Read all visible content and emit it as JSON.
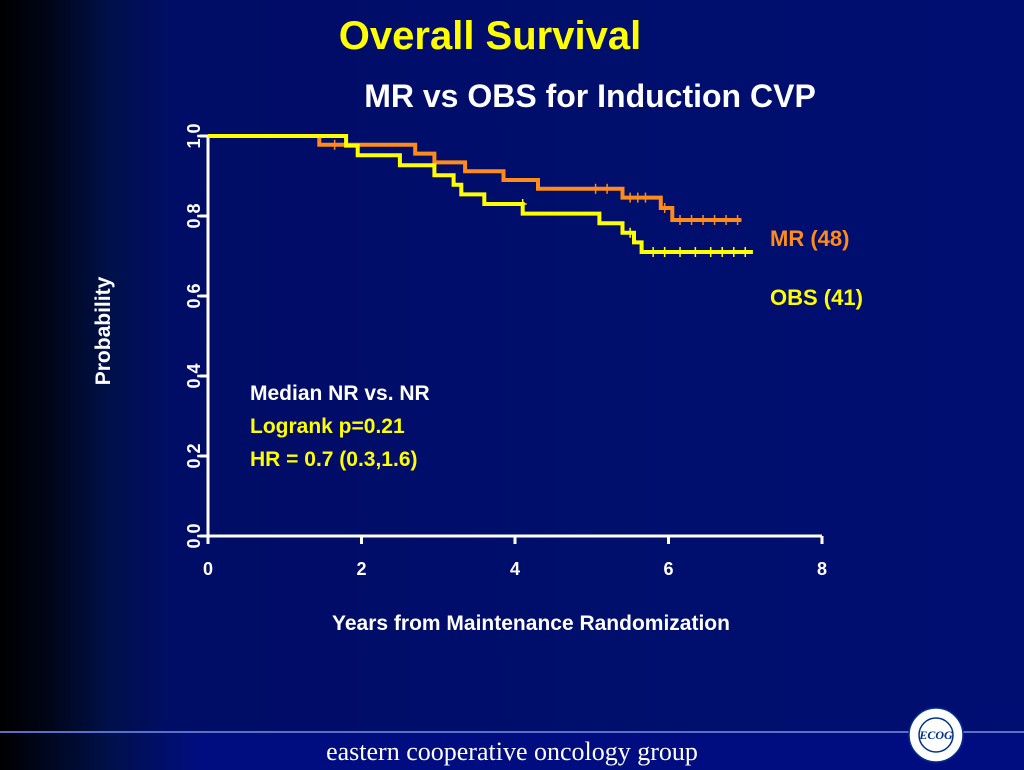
{
  "header": {
    "title": "Overall Survival",
    "subtitle": "MR vs OBS for Induction CVP"
  },
  "annotations": {
    "median": "Median NR vs. NR",
    "logrank": "Logrank p=0.21",
    "hr": "HR = 0.7 (0.3,1.6)"
  },
  "footer": {
    "text": "eastern cooperative oncology group",
    "logo_text": "ECOG",
    "logo_ring": "EASTERN COOPERATIVE ONCOLOGY GROUP"
  },
  "colors": {
    "mr": "#ff8c1a",
    "obs": "#ffff00",
    "axis": "#ffffff",
    "note_highlight": "#ffff00"
  },
  "chart_data": {
    "type": "line",
    "title": "Overall Survival",
    "subtitle": "MR vs OBS for Induction CVP",
    "xlabel": "Years from Maintenance Randomization",
    "ylabel": "Probability",
    "xlim": [
      0,
      8
    ],
    "ylim": [
      0,
      1.0
    ],
    "x_ticks": [
      "0",
      "2",
      "4",
      "6",
      "8"
    ],
    "y_ticks": [
      "0.0",
      "0.2",
      "0.4",
      "0.6",
      "0.8",
      "1.0"
    ],
    "grid": false,
    "series": [
      {
        "name": "MR (48)",
        "steps": [
          [
            0,
            1.0
          ],
          [
            1.45,
            1.0
          ],
          [
            1.45,
            0.978
          ],
          [
            2.7,
            0.978
          ],
          [
            2.7,
            0.956
          ],
          [
            2.95,
            0.956
          ],
          [
            2.95,
            0.934
          ],
          [
            3.35,
            0.934
          ],
          [
            3.35,
            0.912
          ],
          [
            3.85,
            0.912
          ],
          [
            3.85,
            0.89
          ],
          [
            4.3,
            0.89
          ],
          [
            4.3,
            0.868
          ],
          [
            5.4,
            0.868
          ],
          [
            5.4,
            0.846
          ],
          [
            5.9,
            0.846
          ],
          [
            5.9,
            0.82
          ],
          [
            6.05,
            0.82
          ],
          [
            6.05,
            0.79
          ],
          [
            6.95,
            0.79
          ]
        ],
        "censored": [
          [
            1.65,
            0.978
          ],
          [
            5.05,
            0.868
          ],
          [
            5.2,
            0.868
          ],
          [
            5.5,
            0.846
          ],
          [
            5.6,
            0.846
          ],
          [
            5.7,
            0.846
          ],
          [
            5.95,
            0.82
          ],
          [
            6.15,
            0.79
          ],
          [
            6.3,
            0.79
          ],
          [
            6.45,
            0.79
          ],
          [
            6.6,
            0.79
          ],
          [
            6.75,
            0.79
          ],
          [
            6.9,
            0.79
          ]
        ]
      },
      {
        "name": "OBS (41)",
        "steps": [
          [
            0,
            1.0
          ],
          [
            1.8,
            1.0
          ],
          [
            1.8,
            0.976
          ],
          [
            1.95,
            0.976
          ],
          [
            1.95,
            0.952
          ],
          [
            2.5,
            0.952
          ],
          [
            2.5,
            0.927
          ],
          [
            2.95,
            0.927
          ],
          [
            2.95,
            0.902
          ],
          [
            3.2,
            0.902
          ],
          [
            3.2,
            0.878
          ],
          [
            3.3,
            0.878
          ],
          [
            3.3,
            0.854
          ],
          [
            3.6,
            0.854
          ],
          [
            3.6,
            0.83
          ],
          [
            4.1,
            0.83
          ],
          [
            4.1,
            0.806
          ],
          [
            5.1,
            0.806
          ],
          [
            5.1,
            0.782
          ],
          [
            5.4,
            0.782
          ],
          [
            5.4,
            0.758
          ],
          [
            5.55,
            0.758
          ],
          [
            5.55,
            0.734
          ],
          [
            5.65,
            0.734
          ],
          [
            5.65,
            0.71
          ],
          [
            7.1,
            0.71
          ]
        ],
        "censored": [
          [
            4.1,
            0.83
          ],
          [
            5.5,
            0.758
          ],
          [
            5.8,
            0.71
          ],
          [
            5.95,
            0.71
          ],
          [
            6.15,
            0.71
          ],
          [
            6.35,
            0.71
          ],
          [
            6.55,
            0.71
          ],
          [
            6.7,
            0.71
          ],
          [
            6.85,
            0.71
          ],
          [
            7.0,
            0.71
          ]
        ]
      }
    ]
  }
}
